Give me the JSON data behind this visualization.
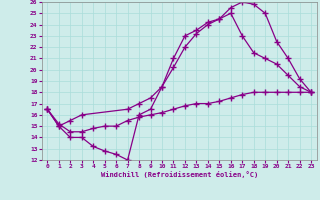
{
  "xlabel": "Windchill (Refroidissement éolien,°C)",
  "background_color": "#ceecea",
  "line_color": "#880088",
  "grid_color": "#aaddda",
  "xlim": [
    -0.5,
    23.5
  ],
  "ylim": [
    12,
    26
  ],
  "xticks": [
    0,
    1,
    2,
    3,
    4,
    5,
    6,
    7,
    8,
    9,
    10,
    11,
    12,
    13,
    14,
    15,
    16,
    17,
    18,
    19,
    20,
    21,
    22,
    23
  ],
  "yticks": [
    12,
    13,
    14,
    15,
    16,
    17,
    18,
    19,
    20,
    21,
    22,
    23,
    24,
    25,
    26
  ],
  "line1_x": [
    0,
    1,
    2,
    3,
    4,
    5,
    6,
    7,
    8,
    9,
    10,
    11,
    12,
    13,
    14,
    15,
    16,
    17,
    18,
    19,
    20,
    21,
    22,
    23
  ],
  "line1_y": [
    16.5,
    15.0,
    14.0,
    14.0,
    13.2,
    12.8,
    12.5,
    12.0,
    16.0,
    16.5,
    18.5,
    21.0,
    23.0,
    23.5,
    24.2,
    24.5,
    25.5,
    26.0,
    25.8,
    25.0,
    22.5,
    21.0,
    19.2,
    18.0
  ],
  "line2_x": [
    0,
    1,
    2,
    3,
    7,
    8,
    9,
    10,
    11,
    12,
    13,
    14,
    15,
    16,
    17,
    18,
    19,
    20,
    21,
    22,
    23
  ],
  "line2_y": [
    16.5,
    15.0,
    15.5,
    16.0,
    16.5,
    17.0,
    17.5,
    18.5,
    20.2,
    22.0,
    23.2,
    24.0,
    24.5,
    25.0,
    23.0,
    21.5,
    21.0,
    20.5,
    19.5,
    18.5,
    18.0
  ],
  "line3_x": [
    0,
    1,
    2,
    3,
    4,
    5,
    6,
    7,
    8,
    9,
    10,
    11,
    12,
    13,
    14,
    15,
    16,
    17,
    18,
    19,
    20,
    21,
    22,
    23
  ],
  "line3_y": [
    16.5,
    15.2,
    14.5,
    14.5,
    14.8,
    15.0,
    15.0,
    15.5,
    15.8,
    16.0,
    16.2,
    16.5,
    16.8,
    17.0,
    17.0,
    17.2,
    17.5,
    17.8,
    18.0,
    18.0,
    18.0,
    18.0,
    18.0,
    18.0
  ]
}
